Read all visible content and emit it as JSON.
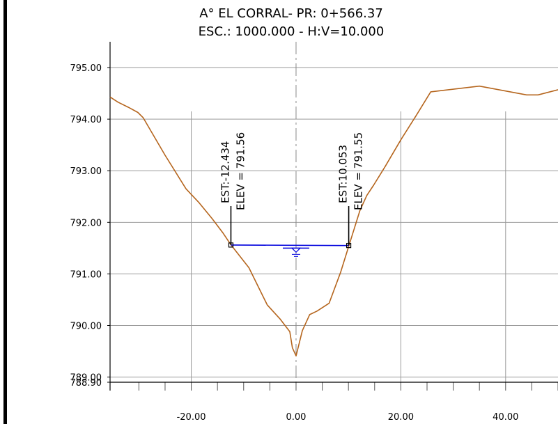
{
  "chart_data": {
    "type": "line",
    "title": "A° EL CORRAL- PR: 0+566.37",
    "subtitle": "ESC.: 1000.000 - H:V=10.000",
    "xlabel": "",
    "ylabel": "",
    "xlim": [
      -35.5,
      50
    ],
    "ylim": [
      788.9,
      795.5
    ],
    "x_ticks": [
      {
        "value": -20,
        "label": "-20.00"
      },
      {
        "value": 0,
        "label": "0.00"
      },
      {
        "value": 20,
        "label": "20.00"
      },
      {
        "value": 40,
        "label": "40.00"
      }
    ],
    "y_ticks": [
      {
        "value": 795,
        "label": "795.00"
      },
      {
        "value": 794,
        "label": "794.00"
      },
      {
        "value": 793,
        "label": "793.00"
      },
      {
        "value": 792,
        "label": "792.00"
      },
      {
        "value": 791,
        "label": "791.00"
      },
      {
        "value": 790,
        "label": "790.00"
      },
      {
        "value": 789,
        "label": "789.00"
      },
      {
        "value": 788.9,
        "label": "788.90"
      }
    ],
    "grid": true,
    "colors": {
      "terrain": "#b5651d",
      "water": "#0000dd",
      "grid": "#9a9a9a",
      "centerline": "#888888",
      "axis": "#000000"
    },
    "series": [
      {
        "key": "terrain",
        "x": [
          -35.5,
          -34,
          -32,
          -30.2,
          -29.2,
          -25,
          -21,
          -18.5,
          -16,
          -14,
          -12.4,
          -9,
          -5.5,
          -3,
          -1.2,
          -0.7,
          0,
          1.2,
          2.6,
          4,
          6.3,
          8.5,
          10.1,
          12.2,
          13.5,
          14.8,
          17,
          20,
          23,
          25.7,
          35,
          44,
          46.2,
          50
        ],
        "y": [
          794.43,
          794.33,
          794.23,
          794.13,
          794.03,
          793.3,
          792.65,
          792.38,
          792.07,
          791.8,
          791.56,
          791.12,
          790.4,
          790.12,
          789.88,
          789.57,
          789.41,
          789.9,
          790.21,
          790.28,
          790.43,
          791.03,
          791.55,
          792.23,
          792.52,
          792.72,
          793.08,
          793.6,
          794.08,
          794.53,
          794.64,
          794.47,
          794.47,
          794.57
        ]
      },
      {
        "key": "water",
        "x": [
          -12.434,
          10.053
        ],
        "y": [
          791.56,
          791.55
        ]
      }
    ],
    "annotations": [
      {
        "x": -12.434,
        "y": 791.56,
        "station": "EST:-12.434",
        "elevation": "ELEV = 791.56"
      },
      {
        "x": 10.053,
        "y": 791.55,
        "station": "EST:10.053",
        "elevation": "ELEV = 791.55"
      }
    ],
    "water_symbol": {
      "x": 0,
      "y": 791.46
    }
  }
}
